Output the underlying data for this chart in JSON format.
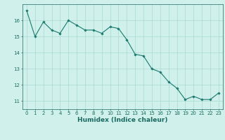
{
  "x": [
    0,
    1,
    2,
    3,
    4,
    5,
    6,
    7,
    8,
    9,
    10,
    11,
    12,
    13,
    14,
    15,
    16,
    17,
    18,
    19,
    20,
    21,
    22,
    23
  ],
  "y": [
    16.6,
    15.0,
    15.9,
    15.4,
    15.2,
    16.0,
    15.7,
    15.4,
    15.4,
    15.2,
    15.6,
    15.5,
    14.8,
    13.9,
    13.8,
    13.0,
    12.8,
    12.2,
    11.8,
    11.1,
    11.3,
    11.1,
    11.1,
    11.5
  ],
  "xlabel": "Humidex (Indice chaleur)",
  "xlim": [
    -0.5,
    23.5
  ],
  "ylim": [
    10.5,
    17.0
  ],
  "yticks": [
    11,
    12,
    13,
    14,
    15,
    16
  ],
  "xticks": [
    0,
    1,
    2,
    3,
    4,
    5,
    6,
    7,
    8,
    9,
    10,
    11,
    12,
    13,
    14,
    15,
    16,
    17,
    18,
    19,
    20,
    21,
    22,
    23
  ],
  "line_color": "#1a7a6e",
  "marker": "D",
  "marker_size": 1.8,
  "bg_color": "#cff0eb",
  "grid_color": "#aad8d2",
  "axis_color": "#1a6a60",
  "tick_label_fontsize": 5.0,
  "xlabel_fontsize": 6.5
}
